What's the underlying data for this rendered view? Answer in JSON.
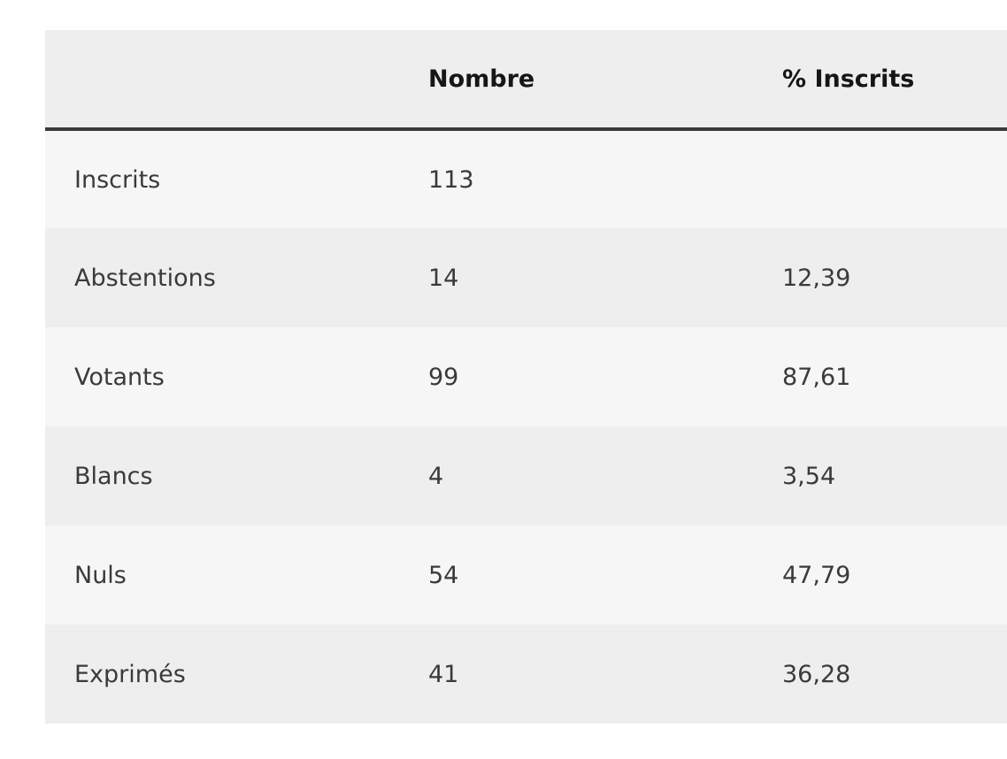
{
  "table": {
    "headers": [
      "",
      "Nombre",
      "% Inscrits"
    ],
    "rows": [
      {
        "label": "Inscrits",
        "nombre": "113",
        "pct": ""
      },
      {
        "label": "Abstentions",
        "nombre": "14",
        "pct": "12,39"
      },
      {
        "label": "Votants",
        "nombre": "99",
        "pct": "87,61"
      },
      {
        "label": "Blancs",
        "nombre": "4",
        "pct": "3,54"
      },
      {
        "label": "Nuls",
        "nombre": "54",
        "pct": "47,79"
      },
      {
        "label": "Exprimés",
        "nombre": "41",
        "pct": "36,28"
      }
    ]
  }
}
